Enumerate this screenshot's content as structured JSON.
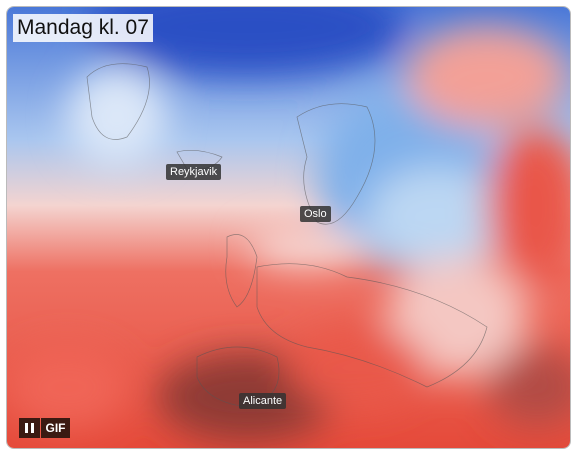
{
  "header": {
    "title": "Mandag kl. 07"
  },
  "places": [
    {
      "label": "Reykjavik"
    },
    {
      "label": "Oslo"
    },
    {
      "label": "Alicante"
    }
  ],
  "controls": {
    "gif": "GIF"
  }
}
